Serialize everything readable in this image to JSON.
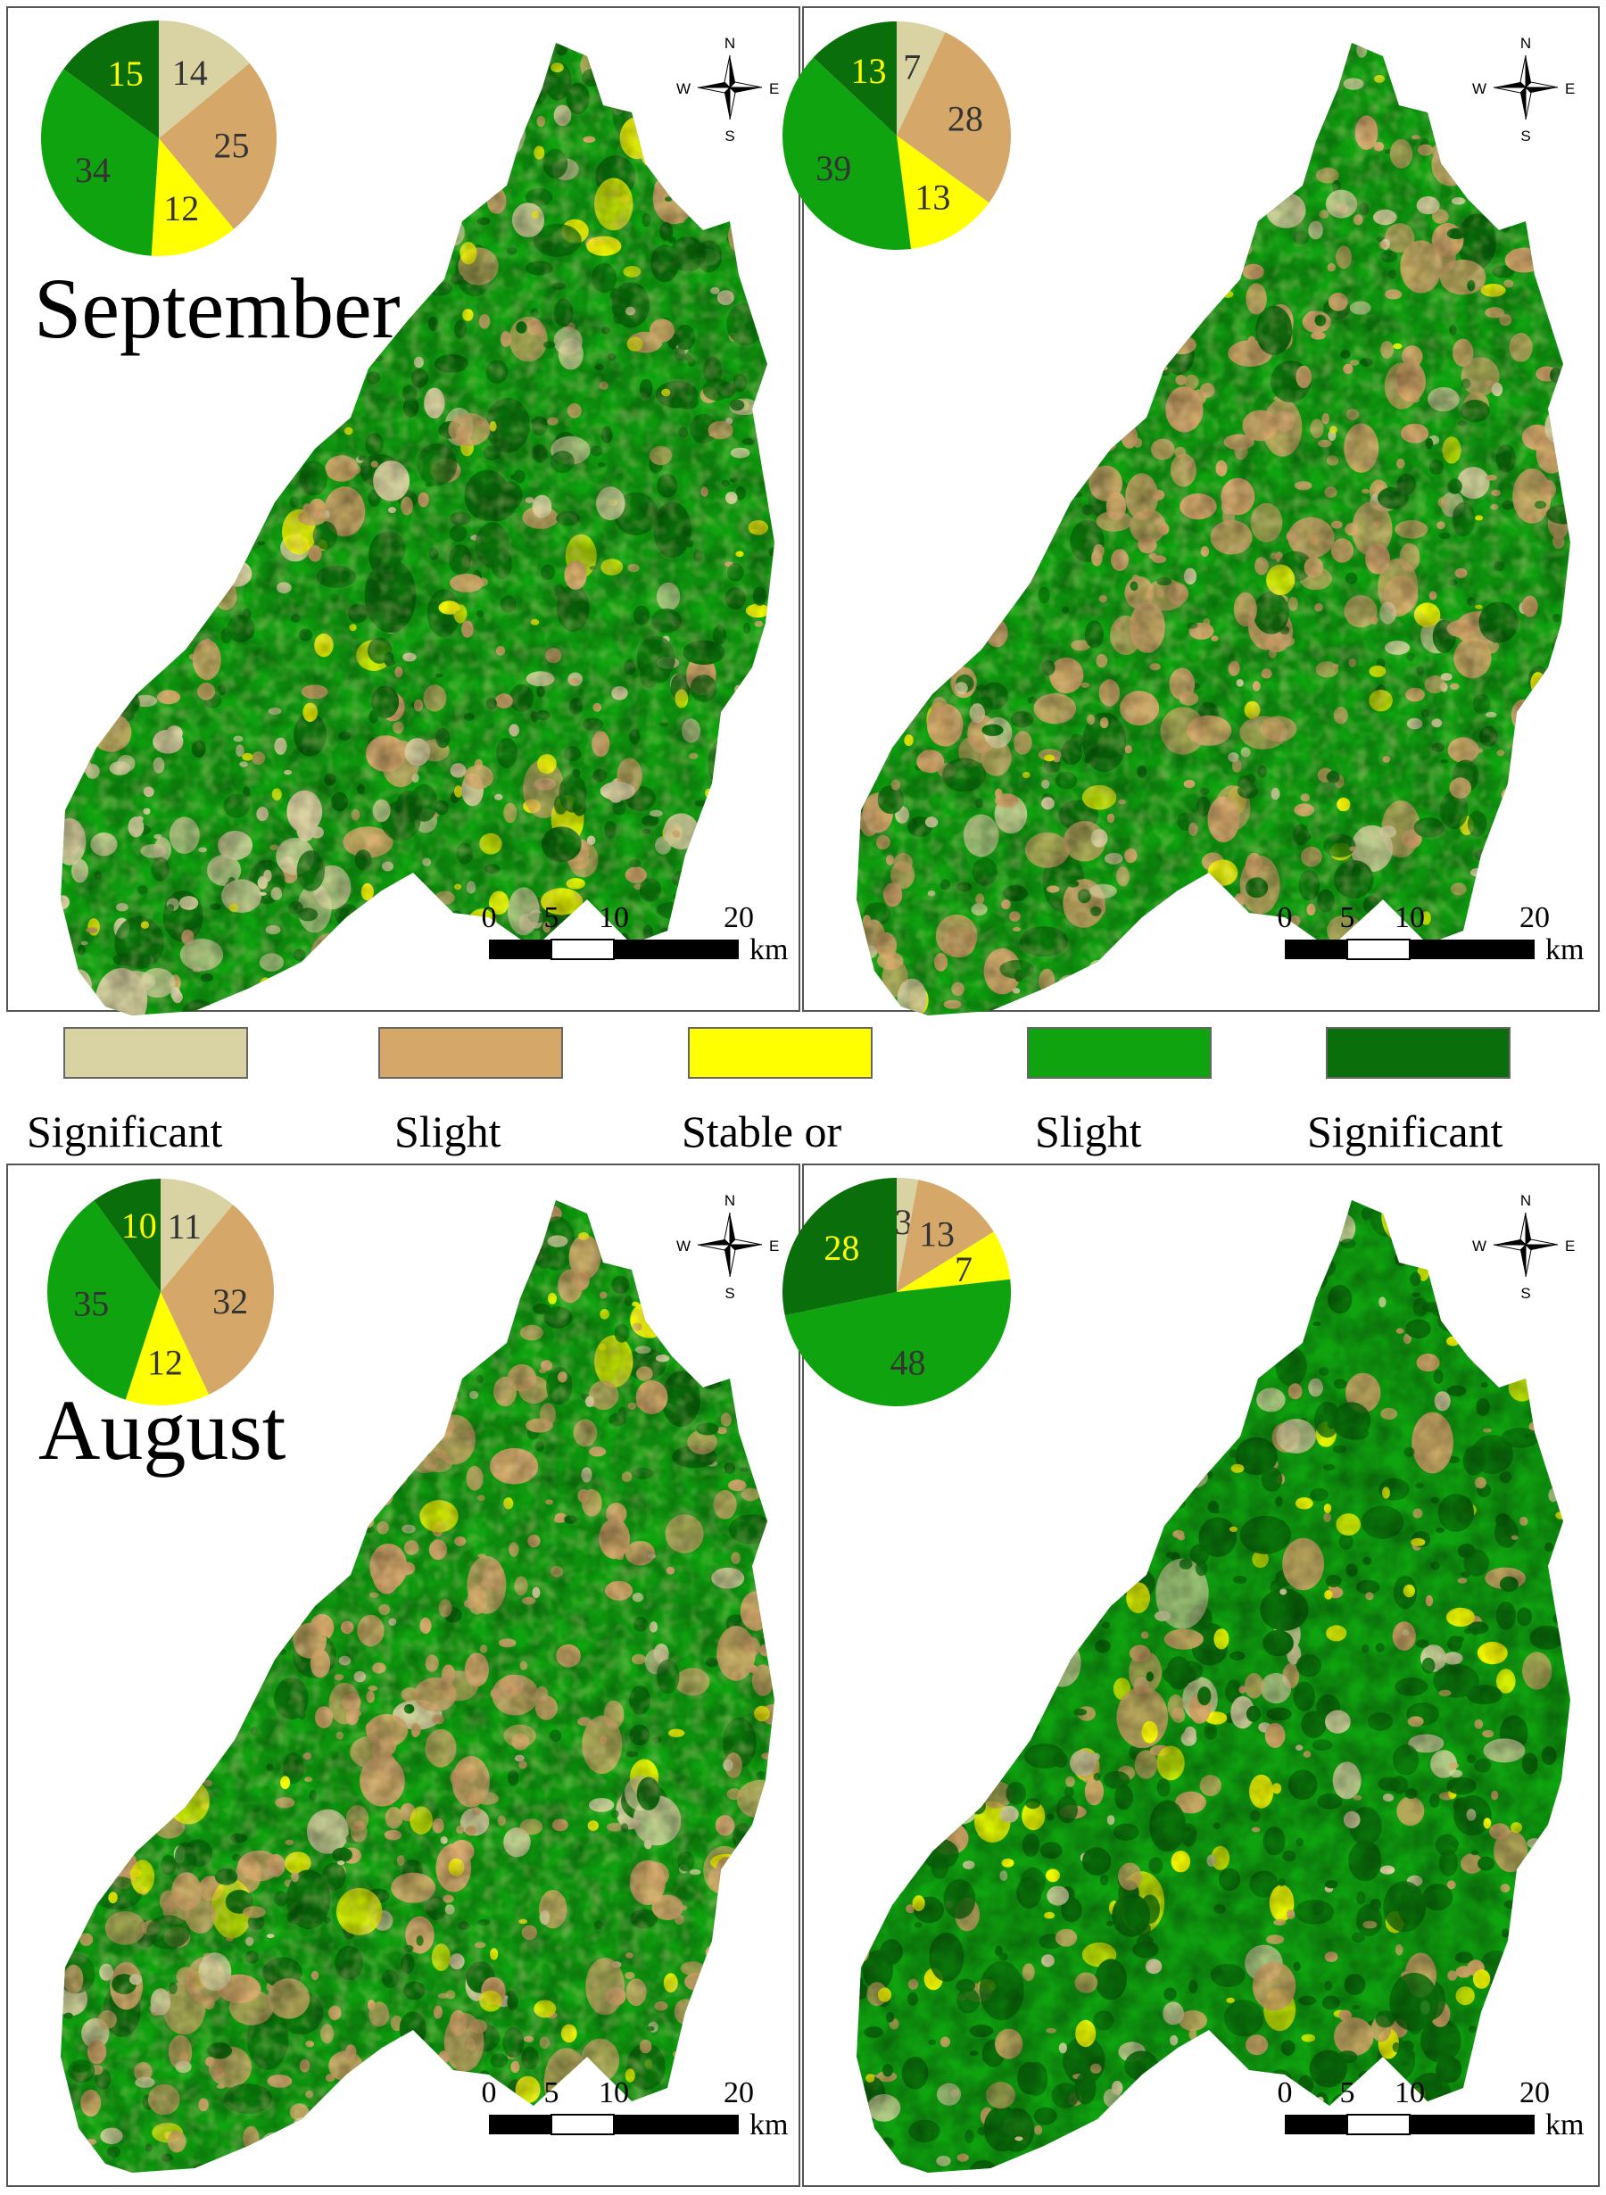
{
  "colors": {
    "significant_decrease": "#d9d3a3",
    "slight_decrease": "#d5a86a",
    "stable": "#ffff00",
    "slight_increase": "#10a310",
    "significant_increase": "#0a6e0a",
    "frame": "#555555"
  },
  "legend": [
    {
      "label": "Significant",
      "color_key": "significant_decrease"
    },
    {
      "label": "Slight",
      "color_key": "slight_decrease"
    },
    {
      "label": "Stable or",
      "color_key": "stable"
    },
    {
      "label": "Slight",
      "color_key": "slight_increase"
    },
    {
      "label": "Significant",
      "color_key": "significant_increase"
    }
  ],
  "compass": {
    "n": "N",
    "s": "S",
    "e": "E",
    "w": "W"
  },
  "scale_bar": {
    "ticks": [
      "0",
      "5",
      "10",
      "20"
    ],
    "unit": "km"
  },
  "panels": [
    {
      "title": "September",
      "map_tone": "mixed",
      "pie": [
        {
          "value": 14,
          "label": "14",
          "color_key": "significant_decrease"
        },
        {
          "value": 25,
          "label": "25",
          "color_key": "slight_decrease"
        },
        {
          "value": 12,
          "label": "12",
          "color_key": "stable"
        },
        {
          "value": 34,
          "label": "34",
          "color_key": "slight_increase"
        },
        {
          "value": 15,
          "label": "15",
          "color_key": "significant_increase"
        }
      ]
    },
    {
      "title": "",
      "map_tone": "tan",
      "pie": [
        {
          "value": 7,
          "label": "7",
          "color_key": "significant_decrease"
        },
        {
          "value": 28,
          "label": "28",
          "color_key": "slight_decrease"
        },
        {
          "value": 13,
          "label": "13",
          "color_key": "stable"
        },
        {
          "value": 39,
          "label": "39",
          "color_key": "slight_increase"
        },
        {
          "value": 13,
          "label": "13",
          "color_key": "significant_increase"
        }
      ]
    },
    {
      "title": "August",
      "map_tone": "tan",
      "pie": [
        {
          "value": 11,
          "label": "11",
          "color_key": "significant_decrease"
        },
        {
          "value": 32,
          "label": "32",
          "color_key": "slight_decrease"
        },
        {
          "value": 12,
          "label": "12",
          "color_key": "stable"
        },
        {
          "value": 35,
          "label": "35",
          "color_key": "slight_increase"
        },
        {
          "value": 10,
          "label": "10",
          "color_key": "significant_increase"
        }
      ]
    },
    {
      "title": "",
      "map_tone": "green",
      "pie": [
        {
          "value": 3,
          "label": "3",
          "color_key": "significant_decrease"
        },
        {
          "value": 13,
          "label": "13",
          "color_key": "slight_decrease"
        },
        {
          "value": 7,
          "label": "7",
          "color_key": "stable"
        },
        {
          "value": 48,
          "label": "48",
          "color_key": "slight_increase"
        },
        {
          "value": 28,
          "label": "28",
          "color_key": "significant_increase"
        }
      ]
    }
  ]
}
